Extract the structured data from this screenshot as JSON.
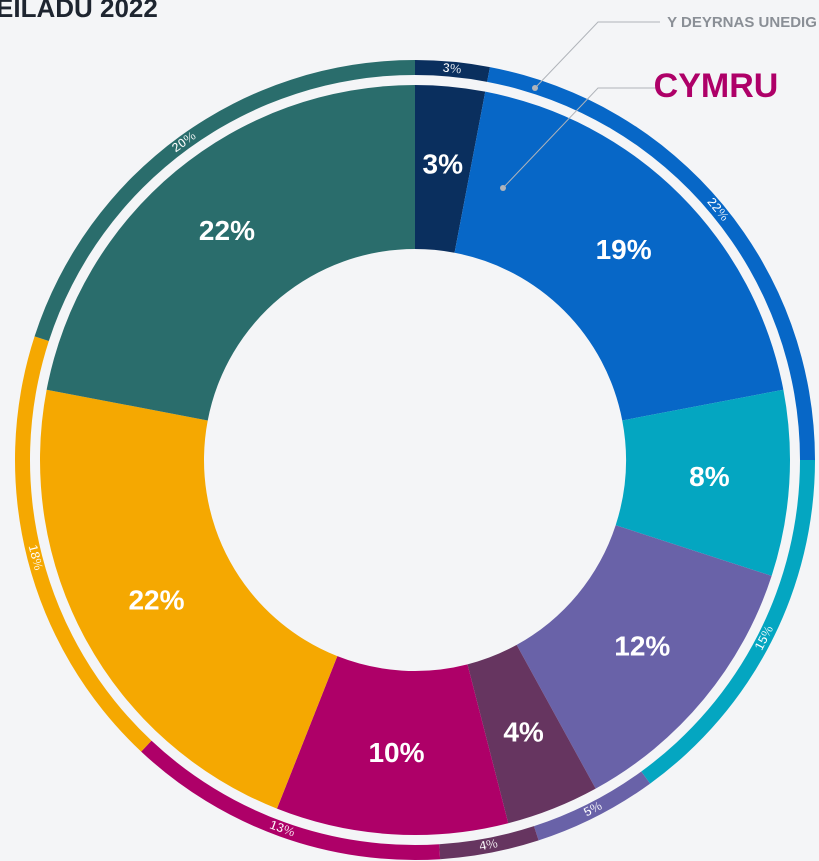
{
  "chart_data": {
    "type": "donut",
    "title": "EILADU 2022",
    "colors": [
      "#0a2f5e",
      "#0767c7",
      "#04a6c1",
      "#6962a8",
      "#663560",
      "#ae0068",
      "#f5a801",
      "#2a6d6c"
    ],
    "series": [
      {
        "name": "CYMRU",
        "color": "#ae0068",
        "values": [
          3,
          19,
          8,
          12,
          4,
          10,
          22,
          22
        ],
        "value_labels": [
          "3%",
          "19%",
          "8%",
          "12%",
          "4%",
          "10%",
          "22%",
          "22%"
        ]
      },
      {
        "name": "Y DEYRNAS UNEDIG",
        "color": "#8a8f96",
        "values": [
          3,
          22,
          15,
          5,
          4,
          13,
          18,
          20
        ],
        "value_labels": [
          "3%",
          "22%",
          "15%",
          "5%",
          "4%",
          "13%",
          "18%",
          "20%"
        ]
      }
    ]
  }
}
